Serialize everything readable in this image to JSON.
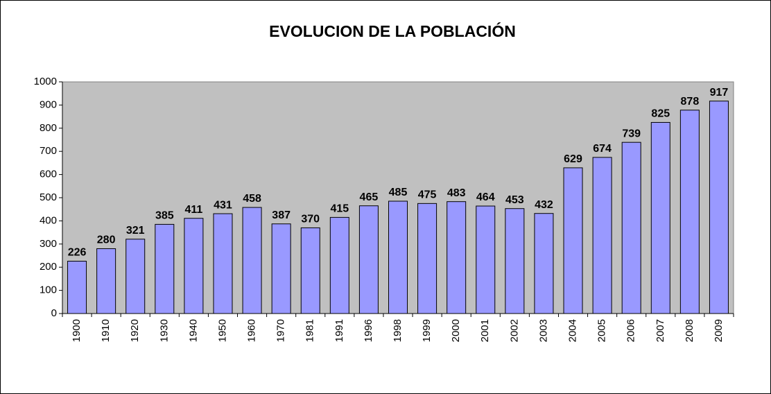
{
  "chart_data": {
    "type": "bar",
    "title": "EVOLUCION DE LA POBLACIÓN",
    "categories": [
      "1900",
      "1910",
      "1920",
      "1930",
      "1940",
      "1950",
      "1960",
      "1970",
      "1981",
      "1991",
      "1996",
      "1998",
      "1999",
      "2000",
      "2001",
      "2002",
      "2003",
      "2004",
      "2005",
      "2006",
      "2007",
      "2008",
      "2009"
    ],
    "values": [
      226,
      280,
      321,
      385,
      411,
      431,
      458,
      387,
      370,
      415,
      465,
      485,
      475,
      483,
      464,
      453,
      432,
      629,
      674,
      739,
      825,
      878,
      917
    ],
    "color": "#9999ff",
    "ylim": [
      0,
      1000
    ],
    "yticks": [
      0,
      100,
      200,
      300,
      400,
      500,
      600,
      700,
      800,
      900,
      1000
    ]
  }
}
